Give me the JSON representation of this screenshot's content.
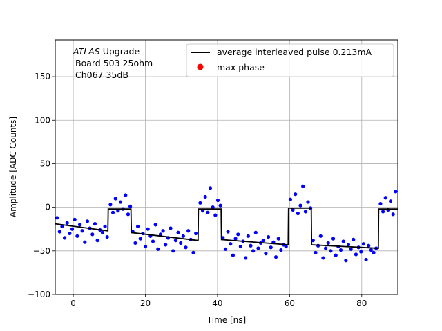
{
  "chart_data": {
    "type": "scatter",
    "title": "",
    "xlabel": "Time [ns]",
    "ylabel": "Amplitude [ADC Counts]",
    "xlim": [
      -5,
      90
    ],
    "ylim": [
      -100,
      192
    ],
    "xticks": [
      0,
      20,
      40,
      60,
      80
    ],
    "yticks": [
      -100,
      -50,
      0,
      50,
      100,
      150
    ],
    "grid": true,
    "legend_position": "top-right",
    "annotation": {
      "line1_italic": "ATLAS",
      "line1_rest": " Upgrade",
      "line2": "Board 503 25ohm",
      "line3": "Ch067 35dB"
    },
    "series": [
      {
        "name": "average interleaved pulse 0.213mA",
        "style": "line",
        "color": "#000000",
        "x": [
          -5,
          9.6,
          9.7,
          16.0,
          16.1,
          34.6,
          34.7,
          41.0,
          41.1,
          59.6,
          59.7,
          66.0,
          66.1,
          84.6,
          84.7,
          90
        ],
        "y": [
          -19,
          -27,
          -2,
          -2,
          -29,
          -38,
          -2,
          -2,
          -37,
          -43,
          -1,
          -1,
          -43,
          -47,
          -2,
          -2
        ]
      },
      {
        "name": "max phase",
        "style": "marker",
        "color": "#ff0000",
        "x": [],
        "y": []
      },
      {
        "name": "",
        "style": "scatter",
        "color": "#0000ff",
        "x": [
          -4.5,
          -3.8,
          -3.1,
          -2.4,
          -1.7,
          -1.0,
          -0.3,
          0.4,
          1.1,
          1.8,
          2.5,
          3.2,
          3.9,
          4.6,
          5.3,
          6.0,
          6.7,
          7.4,
          8.1,
          8.8,
          9.4,
          10.3,
          11.0,
          11.7,
          12.4,
          13.1,
          13.8,
          14.5,
          15.2,
          15.8,
          16.5,
          17.2,
          17.9,
          18.6,
          19.3,
          20.0,
          20.7,
          21.4,
          22.1,
          22.8,
          23.5,
          24.2,
          24.9,
          25.6,
          26.3,
          27.0,
          27.7,
          28.4,
          29.1,
          29.8,
          30.5,
          31.2,
          31.9,
          32.6,
          33.3,
          34.0,
          35.2,
          35.9,
          36.6,
          37.3,
          38.0,
          38.7,
          39.4,
          40.1,
          40.8,
          41.5,
          42.2,
          42.9,
          43.6,
          44.3,
          45.0,
          45.7,
          46.4,
          47.1,
          47.8,
          48.5,
          49.2,
          49.9,
          50.6,
          51.3,
          52.0,
          52.7,
          53.4,
          54.1,
          54.8,
          55.5,
          56.2,
          56.9,
          57.6,
          58.3,
          59.0,
          60.2,
          60.9,
          61.6,
          62.3,
          63.0,
          63.7,
          64.4,
          65.1,
          65.8,
          66.5,
          67.2,
          67.9,
          68.6,
          69.3,
          70.0,
          70.7,
          71.4,
          72.1,
          72.8,
          73.5,
          74.2,
          74.9,
          75.6,
          76.3,
          77.0,
          77.7,
          78.4,
          79.1,
          79.8,
          80.5,
          81.2,
          81.9,
          82.6,
          83.3,
          84.0,
          85.2,
          85.9,
          86.6,
          87.3,
          88.0,
          88.7,
          89.4
        ],
        "y": [
          -12,
          -28,
          -22,
          -35,
          -18,
          -30,
          -25,
          -14,
          -33,
          -20,
          -27,
          -40,
          -16,
          -24,
          -31,
          -19,
          -38,
          -26,
          -29,
          -22,
          -34,
          3,
          -6,
          10,
          -4,
          6,
          -2,
          14,
          -8,
          1,
          -28,
          -41,
          -22,
          -36,
          -30,
          -45,
          -25,
          -33,
          -39,
          -20,
          -48,
          -31,
          -27,
          -43,
          -35,
          -24,
          -50,
          -38,
          -29,
          -41,
          -33,
          -46,
          -27,
          -37,
          -52,
          -30,
          5,
          -4,
          12,
          -6,
          22,
          0,
          -9,
          8,
          2,
          -35,
          -48,
          -28,
          -42,
          -55,
          -36,
          -31,
          -45,
          -39,
          -58,
          -33,
          -44,
          -50,
          -29,
          -47,
          -41,
          -38,
          -53,
          -34,
          -46,
          -40,
          -57,
          -36,
          -49,
          -43,
          -45,
          9,
          -3,
          15,
          -7,
          2,
          24,
          -5,
          6,
          -1,
          -38,
          -52,
          -44,
          -33,
          -58,
          -47,
          -41,
          -50,
          -36,
          -55,
          -45,
          -49,
          -39,
          -61,
          -43,
          -48,
          -37,
          -54,
          -46,
          -51,
          -42,
          -60,
          -44,
          -49,
          -52,
          -47,
          4,
          -5,
          11,
          -3,
          7,
          -8,
          18
        ]
      }
    ]
  }
}
